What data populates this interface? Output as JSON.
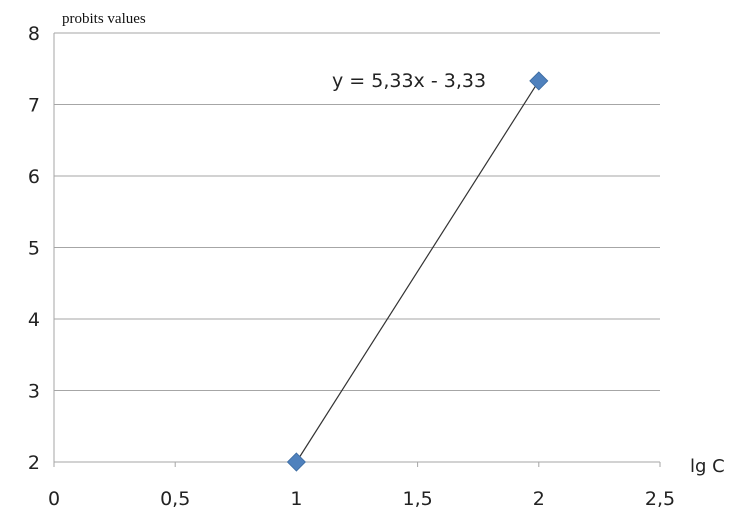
{
  "chart_data": {
    "type": "scatter",
    "ylabel": "probits values",
    "xlabel": "lg C",
    "xlim": [
      0,
      2.5
    ],
    "ylim": [
      2,
      8
    ],
    "x_ticks": [
      0,
      0.5,
      1,
      1.5,
      2,
      2.5
    ],
    "x_tick_labels": [
      "0",
      "0,5",
      "1",
      "1,5",
      "2",
      "2,5"
    ],
    "y_ticks": [
      2,
      3,
      4,
      5,
      6,
      7,
      8
    ],
    "y_tick_labels": [
      "2",
      "3",
      "4",
      "5",
      "6",
      "7",
      "8"
    ],
    "grid": "horizontal",
    "series": [
      {
        "x": [
          1,
          2
        ],
        "y": [
          2,
          7.33
        ],
        "marker": "diamond",
        "color": "#4f81bd"
      }
    ],
    "trendline": {
      "equation": "y = 5,33x - 3,33",
      "slope": 5.33,
      "intercept": -3.33,
      "x_range": [
        1,
        2
      ],
      "color": "#333333"
    }
  }
}
